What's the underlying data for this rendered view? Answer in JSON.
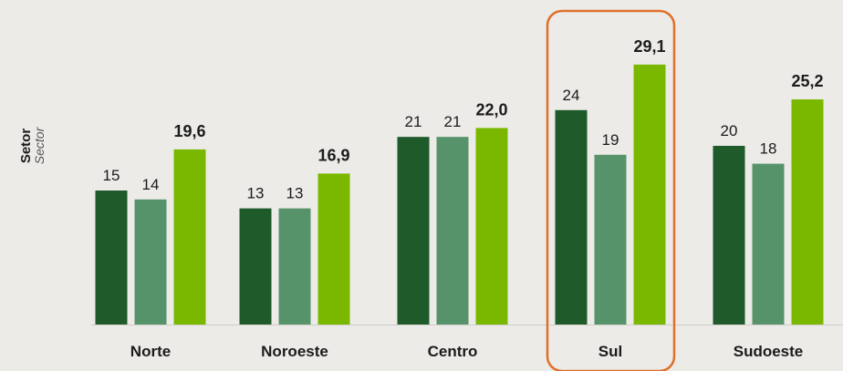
{
  "y_axis": {
    "main": "Setor",
    "sub": "Sector"
  },
  "chart_data": {
    "type": "bar",
    "categories": [
      "Norte",
      "Noroeste",
      "Centro",
      "Sul",
      "Sudoeste"
    ],
    "series": [
      {
        "values": [
          15,
          13,
          21,
          24,
          20
        ],
        "labels": [
          "15",
          "13",
          "21",
          "24",
          "20"
        ]
      },
      {
        "values": [
          14,
          13,
          21,
          19,
          18
        ],
        "labels": [
          "14",
          "13",
          "21",
          "19",
          "18"
        ]
      },
      {
        "values": [
          19.6,
          16.9,
          22.0,
          29.1,
          25.2
        ],
        "labels": [
          "19,6",
          "16,9",
          "22,0",
          "29,1",
          "25,2"
        ]
      }
    ],
    "colors": [
      "#1e5a2a",
      "#57936a",
      "#7ab800"
    ],
    "highlight": "Sul",
    "highlight_color": "#e06f2a",
    "ylim": [
      0,
      30
    ]
  }
}
